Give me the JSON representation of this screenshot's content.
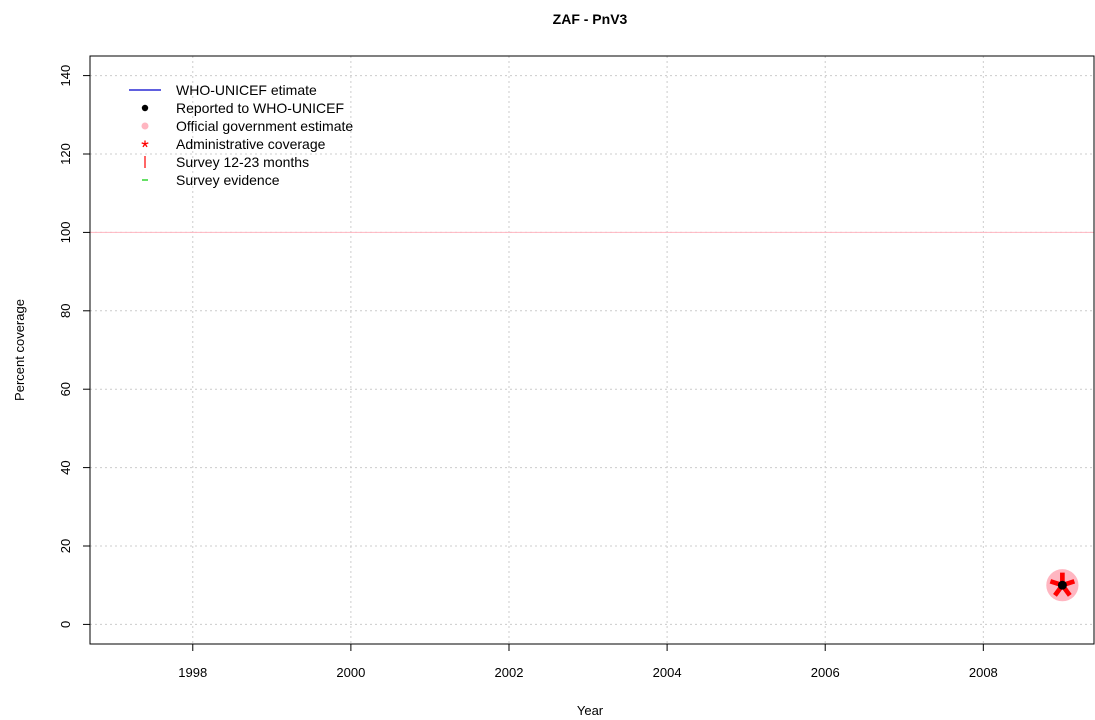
{
  "chart_data": {
    "type": "scatter",
    "title": "ZAF  -  PnV3",
    "xlabel": "Year",
    "ylabel": "Percent coverage",
    "xlim": [
      1996.7,
      2009.4
    ],
    "ylim": [
      -5,
      145
    ],
    "x_ticks": [
      1998,
      2000,
      2002,
      2004,
      2006,
      2008
    ],
    "y_ticks": [
      0,
      20,
      40,
      60,
      80,
      100,
      120,
      140
    ],
    "grid": true,
    "reference_line": {
      "y": 100,
      "color": "#ffb6c1"
    },
    "legend": {
      "position": "top-left",
      "entries": [
        {
          "label": "WHO-UNICEF etimate",
          "symbol": "line",
          "color": "#0000cc"
        },
        {
          "label": "Reported to WHO-UNICEF",
          "symbol": "dot",
          "color": "#000000"
        },
        {
          "label": "Official government estimate",
          "symbol": "big-dot",
          "color": "#ffb6c1"
        },
        {
          "label": "Administrative coverage",
          "symbol": "star",
          "color": "#ff0000"
        },
        {
          "label": "Survey 12-23 months",
          "symbol": "vbar",
          "color": "#ff0000"
        },
        {
          "label": "Survey evidence",
          "symbol": "dash",
          "color": "#00cc00"
        }
      ]
    },
    "series": [
      {
        "name": "Official government estimate",
        "marker": "big-dot",
        "color": "#ffb6c1",
        "points": [
          {
            "x": 2009,
            "y": 10
          }
        ]
      },
      {
        "name": "Administrative coverage",
        "marker": "star",
        "color": "#ff0000",
        "points": [
          {
            "x": 2009,
            "y": 10
          }
        ]
      },
      {
        "name": "Reported to WHO-UNICEF",
        "marker": "dot",
        "color": "#000000",
        "points": [
          {
            "x": 2009,
            "y": 10
          }
        ]
      }
    ]
  }
}
